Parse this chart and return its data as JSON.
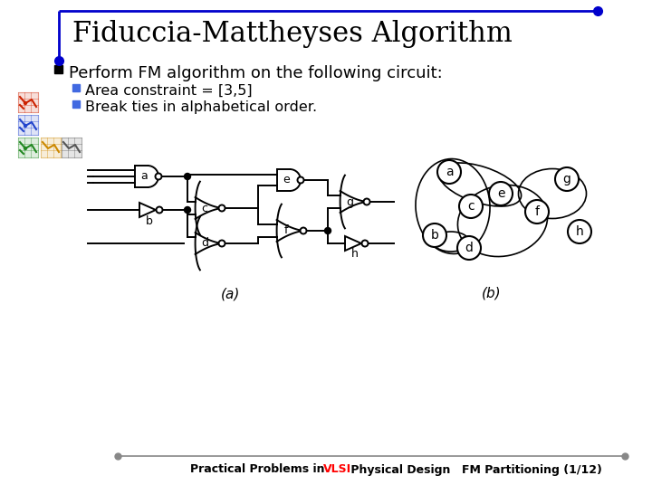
{
  "title": "Fiduccia-Mattheyses Algorithm",
  "bullet1": "Perform FM algorithm on the following circuit:",
  "sub1": "Area constraint = [3,5]",
  "sub2": "Break ties in alphabetical order.",
  "footer_left1": "Practical Problems in ",
  "footer_vlsi": "VLSI",
  "footer_left2": " Physical Design",
  "footer_right": "FM Partitioning (1/12)",
  "bg_color": "#ffffff",
  "title_color": "#000000",
  "accent_color": "#0000cc",
  "footer_line_color": "#888888",
  "vlsi_color": "#ff0000",
  "blue_sq_color": "#4169E1",
  "diagram_a_label": "(a)",
  "diagram_b_label": "(b)",
  "gate_lw": 1.4,
  "wire_lw": 1.4
}
